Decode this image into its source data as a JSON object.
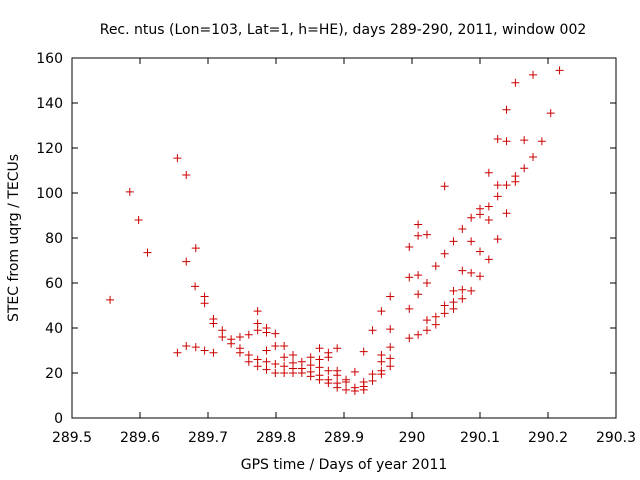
{
  "chart_data": {
    "type": "scatter",
    "title": "Rec. ntus (Lon=103, Lat=1, h=HE), days 289-290, 2011, window 002",
    "xlabel": "GPS time / Days of year 2011",
    "ylabel": "STEC from uqrg / TECUs",
    "xlim": [
      289.5,
      290.3
    ],
    "ylim": [
      0,
      160
    ],
    "xticks": [
      289.5,
      289.6,
      289.7,
      289.8,
      289.9,
      290,
      290.1,
      290.2,
      290.3
    ],
    "xtick_labels": [
      "289.5",
      "289.6",
      "289.7",
      "289.8",
      "289.9",
      "290",
      "290.1",
      "290.2",
      "290.3"
    ],
    "yticks": [
      0,
      20,
      40,
      60,
      80,
      100,
      120,
      140,
      160
    ],
    "ytick_labels": [
      "0",
      "20",
      "40",
      "60",
      "80",
      "100",
      "120",
      "140",
      "160"
    ],
    "grid": false,
    "marker": "+",
    "marker_color": "#cc0000",
    "series": [
      {
        "name": "STEC",
        "points": [
          [
            289.556,
            52.5
          ],
          [
            289.585,
            100.5
          ],
          [
            289.598,
            88
          ],
          [
            289.611,
            73.5
          ],
          [
            289.655,
            115.5
          ],
          [
            289.668,
            108
          ],
          [
            289.668,
            69.5
          ],
          [
            289.682,
            75.5
          ],
          [
            289.681,
            58.5
          ],
          [
            289.695,
            54
          ],
          [
            289.695,
            51
          ],
          [
            289.655,
            29
          ],
          [
            289.668,
            32
          ],
          [
            289.682,
            31.5
          ],
          [
            289.695,
            30
          ],
          [
            289.708,
            44
          ],
          [
            289.708,
            42
          ],
          [
            289.708,
            29
          ],
          [
            289.721,
            39
          ],
          [
            289.721,
            36
          ],
          [
            289.734,
            35
          ],
          [
            289.734,
            33
          ],
          [
            289.747,
            36
          ],
          [
            289.747,
            31
          ],
          [
            289.747,
            29
          ],
          [
            289.76,
            37
          ],
          [
            289.76,
            28
          ],
          [
            289.76,
            25
          ],
          [
            289.773,
            47.5
          ],
          [
            289.773,
            42
          ],
          [
            289.773,
            39
          ],
          [
            289.773,
            26
          ],
          [
            289.773,
            23
          ],
          [
            289.786,
            40
          ],
          [
            289.786,
            38
          ],
          [
            289.786,
            30
          ],
          [
            289.786,
            25
          ],
          [
            289.786,
            21.5
          ],
          [
            289.799,
            37.5
          ],
          [
            289.799,
            32
          ],
          [
            289.799,
            24
          ],
          [
            289.799,
            20
          ],
          [
            289.812,
            32
          ],
          [
            289.812,
            27
          ],
          [
            289.812,
            23
          ],
          [
            289.812,
            20
          ],
          [
            289.825,
            28
          ],
          [
            289.825,
            24.5
          ],
          [
            289.825,
            22
          ],
          [
            289.825,
            20
          ],
          [
            289.838,
            25
          ],
          [
            289.838,
            22
          ],
          [
            289.838,
            20
          ],
          [
            289.851,
            27
          ],
          [
            289.851,
            23.5
          ],
          [
            289.851,
            20.5
          ],
          [
            289.851,
            18.5
          ],
          [
            289.864,
            31
          ],
          [
            289.864,
            26
          ],
          [
            289.864,
            22.5
          ],
          [
            289.864,
            19
          ],
          [
            289.864,
            17
          ],
          [
            289.877,
            29
          ],
          [
            289.877,
            27
          ],
          [
            289.877,
            21
          ],
          [
            289.877,
            17
          ],
          [
            289.877,
            15.5
          ],
          [
            289.89,
            31
          ],
          [
            289.89,
            21
          ],
          [
            289.89,
            19
          ],
          [
            289.89,
            15.5
          ],
          [
            289.89,
            13.5
          ],
          [
            289.903,
            17
          ],
          [
            289.903,
            16
          ],
          [
            289.903,
            12.5
          ],
          [
            289.916,
            20.5
          ],
          [
            289.916,
            13.5
          ],
          [
            289.916,
            12
          ],
          [
            289.929,
            29.5
          ],
          [
            289.929,
            16
          ],
          [
            289.929,
            14
          ],
          [
            289.929,
            12.5
          ],
          [
            289.942,
            39
          ],
          [
            289.942,
            19.5
          ],
          [
            289.942,
            16.5
          ],
          [
            289.955,
            47.5
          ],
          [
            289.955,
            28
          ],
          [
            289.955,
            25
          ],
          [
            289.955,
            21
          ],
          [
            289.955,
            19.5
          ],
          [
            289.968,
            54
          ],
          [
            289.968,
            39.5
          ],
          [
            289.968,
            31.5
          ],
          [
            289.968,
            26.5
          ],
          [
            289.968,
            23
          ],
          [
            289.996,
            76
          ],
          [
            289.996,
            62.5
          ],
          [
            289.996,
            48.5
          ],
          [
            289.996,
            35.5
          ],
          [
            290.009,
            86
          ],
          [
            290.009,
            81
          ],
          [
            290.009,
            63.5
          ],
          [
            290.009,
            55
          ],
          [
            290.009,
            37
          ],
          [
            290.022,
            81.5
          ],
          [
            290.022,
            60
          ],
          [
            290.022,
            43.5
          ],
          [
            290.022,
            39
          ],
          [
            290.035,
            67.5
          ],
          [
            290.035,
            45
          ],
          [
            290.035,
            41.5
          ],
          [
            290.048,
            103
          ],
          [
            290.048,
            73
          ],
          [
            290.048,
            50
          ],
          [
            290.048,
            46.5
          ],
          [
            290.061,
            78.5
          ],
          [
            290.061,
            56.5
          ],
          [
            290.061,
            51.5
          ],
          [
            290.061,
            48.5
          ],
          [
            290.074,
            84
          ],
          [
            290.074,
            65.5
          ],
          [
            290.074,
            57
          ],
          [
            290.074,
            53
          ],
          [
            290.087,
            89
          ],
          [
            290.087,
            78.5
          ],
          [
            290.087,
            64.5
          ],
          [
            290.087,
            56.5
          ],
          [
            290.1,
            93
          ],
          [
            290.1,
            90.5
          ],
          [
            290.1,
            74
          ],
          [
            290.1,
            63
          ],
          [
            290.113,
            109
          ],
          [
            290.113,
            94
          ],
          [
            290.113,
            88
          ],
          [
            290.113,
            70.5
          ],
          [
            290.126,
            124
          ],
          [
            290.126,
            103.5
          ],
          [
            290.126,
            98.5
          ],
          [
            290.126,
            79.5
          ],
          [
            290.139,
            137
          ],
          [
            290.139,
            123
          ],
          [
            290.139,
            103.5
          ],
          [
            290.139,
            91
          ],
          [
            290.152,
            149
          ],
          [
            290.152,
            107.5
          ],
          [
            290.152,
            105
          ],
          [
            290.165,
            123.5
          ],
          [
            290.165,
            111
          ],
          [
            290.178,
            152.5
          ],
          [
            290.178,
            116
          ],
          [
            290.191,
            123
          ],
          [
            290.204,
            135.5
          ],
          [
            290.217,
            154.5
          ]
        ]
      }
    ]
  }
}
